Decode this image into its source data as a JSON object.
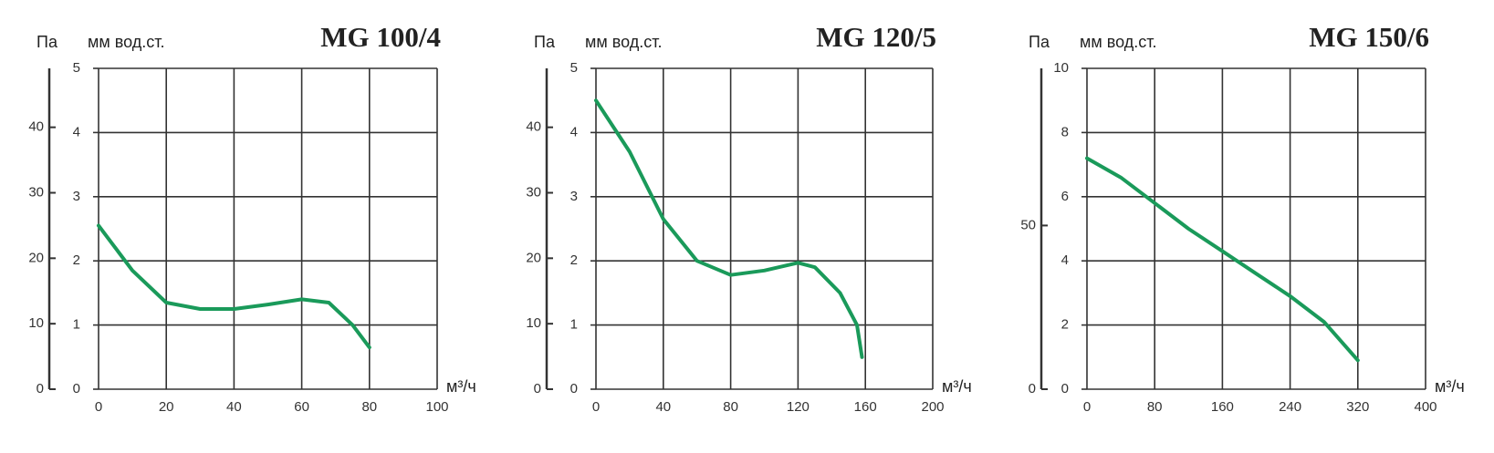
{
  "chart_data": [
    {
      "type": "line",
      "title": "MG 100/4",
      "y2_label": "Па",
      "y_label": "мм вод.ст.",
      "x_label": "м³/ч",
      "x": [
        0,
        10,
        20,
        30,
        40,
        50,
        60,
        68,
        75,
        80
      ],
      "values": [
        2.55,
        1.85,
        1.35,
        1.25,
        1.25,
        1.32,
        1.4,
        1.35,
        1.0,
        0.65
      ],
      "color": "#1a9a5a",
      "grid": true,
      "xlim": [
        0,
        100
      ],
      "xticks": [
        0,
        20,
        40,
        60,
        80,
        100
      ],
      "ylim": [
        0,
        5
      ],
      "yticks": [
        0,
        1,
        2,
        3,
        4,
        5
      ],
      "y2lim": [
        0,
        49
      ],
      "y2ticks": [
        0,
        10,
        20,
        30,
        40
      ]
    },
    {
      "type": "line",
      "title": "MG 120/5",
      "y2_label": "Па",
      "y_label": "мм вод.ст.",
      "x_label": "м³/ч",
      "x": [
        0,
        20,
        40,
        60,
        80,
        100,
        120,
        130,
        145,
        155,
        158
      ],
      "values": [
        4.5,
        3.7,
        2.65,
        2.0,
        1.78,
        1.85,
        1.97,
        1.9,
        1.5,
        1.0,
        0.5
      ],
      "color": "#1a9a5a",
      "grid": true,
      "xlim": [
        0,
        200
      ],
      "xticks": [
        0,
        40,
        80,
        120,
        160,
        200
      ],
      "ylim": [
        0,
        5
      ],
      "yticks": [
        0,
        1,
        2,
        3,
        4,
        5
      ],
      "y2lim": [
        0,
        49
      ],
      "y2ticks": [
        0,
        10,
        20,
        30,
        40
      ]
    },
    {
      "type": "line",
      "title": "MG 150/6",
      "y2_label": "Па",
      "y_label": "мм вод.ст.",
      "x_label": "м³/ч",
      "x": [
        0,
        40,
        80,
        120,
        160,
        200,
        240,
        280,
        320
      ],
      "values": [
        7.2,
        6.6,
        5.8,
        5.0,
        4.3,
        3.6,
        2.9,
        2.1,
        0.9
      ],
      "color": "#1a9a5a",
      "grid": true,
      "xlim": [
        0,
        400
      ],
      "xticks": [
        0,
        80,
        160,
        240,
        320,
        400
      ],
      "ylim": [
        0,
        10
      ],
      "yticks": [
        0,
        2,
        4,
        6,
        8,
        10
      ],
      "y2lim": [
        0,
        98
      ],
      "y2ticks": [
        0,
        50
      ]
    }
  ]
}
